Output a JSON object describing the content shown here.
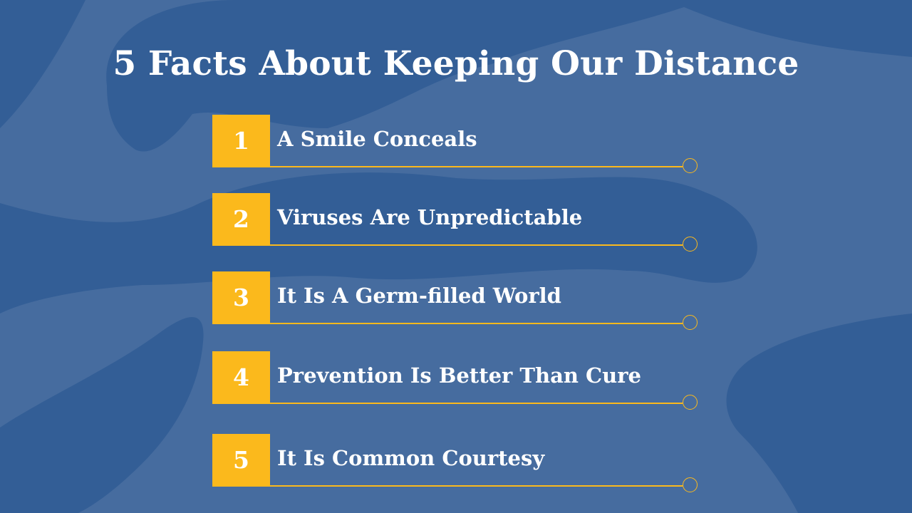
{
  "slide": {
    "title": "5 Facts About Keeping Our Distance",
    "colors": {
      "background": "#466c9f",
      "blob": "#335e96",
      "accent": "#fbb91c",
      "text": "#ffffff"
    }
  },
  "facts": [
    {
      "number": "1",
      "text": "A Smile Conceals"
    },
    {
      "number": "2",
      "text": "Viruses Are Unpredictable"
    },
    {
      "number": "3",
      "text": "It Is A Germ-filled World"
    },
    {
      "number": "4",
      "text": "Prevention Is Better Than Cure"
    },
    {
      "number": "5",
      "text": "It Is Common Courtesy"
    }
  ]
}
